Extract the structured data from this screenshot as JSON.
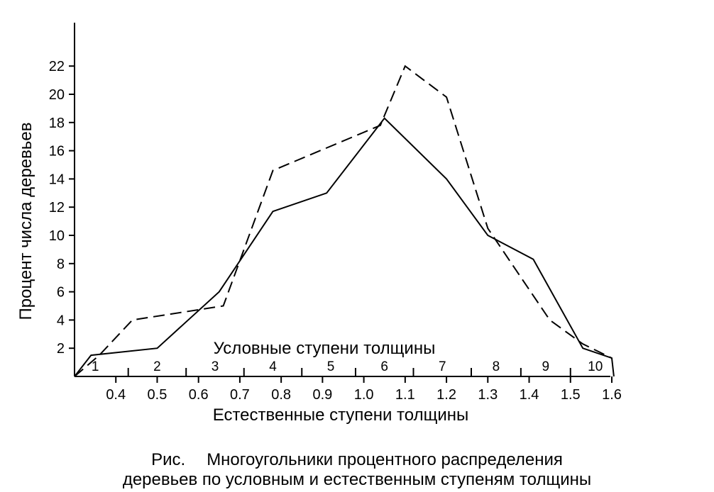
{
  "chart_data": {
    "type": "line",
    "ylabel": "Процент числа деревьев",
    "xlabel": "Естественные ступени толщины",
    "conditional_label": "Условные ступени толщины",
    "ylim": [
      0,
      24
    ],
    "yticks": [
      2,
      4,
      6,
      8,
      10,
      12,
      14,
      16,
      18,
      20,
      22
    ],
    "x_natural_ticks": [
      "0.4",
      "0.5",
      "0.6",
      "0.7",
      "0.8",
      "0.9",
      "1.0",
      "1.1",
      "1.2",
      "1.3",
      "1.4",
      "1.5",
      "1.6"
    ],
    "x_natural_values": [
      0.4,
      0.5,
      0.6,
      0.7,
      0.8,
      0.9,
      1.0,
      1.1,
      1.2,
      1.3,
      1.4,
      1.5,
      1.6
    ],
    "conditional_ticks": [
      {
        "label": "1",
        "x": 0.35
      },
      {
        "label": "2",
        "x": 0.5
      },
      {
        "label": "3",
        "x": 0.64
      },
      {
        "label": "4",
        "x": 0.78
      },
      {
        "label": "5",
        "x": 0.92
      },
      {
        "label": "6",
        "x": 1.05
      },
      {
        "label": "7",
        "x": 1.19
      },
      {
        "label": "8",
        "x": 1.32
      },
      {
        "label": "9",
        "x": 1.44
      },
      {
        "label": "10",
        "x": 1.56
      }
    ],
    "conditional_tick_marks": [
      0.43,
      0.57,
      0.71,
      0.85,
      0.98,
      1.12,
      1.26,
      1.38,
      1.5
    ],
    "grid": false,
    "series": [
      {
        "style": "solid",
        "points": [
          [
            0.3,
            0.0
          ],
          [
            0.34,
            1.5
          ],
          [
            0.5,
            2.0
          ],
          [
            0.65,
            6.0
          ],
          [
            0.78,
            11.7
          ],
          [
            0.91,
            13.0
          ],
          [
            1.05,
            18.3
          ],
          [
            1.2,
            14.0
          ],
          [
            1.3,
            10.0
          ],
          [
            1.41,
            8.3
          ],
          [
            1.53,
            2.0
          ],
          [
            1.6,
            1.3
          ],
          [
            1.605,
            0.0
          ]
        ]
      },
      {
        "style": "dashed",
        "points": [
          [
            0.3,
            0.0
          ],
          [
            0.36,
            1.5
          ],
          [
            0.44,
            4.0
          ],
          [
            0.66,
            5.0
          ],
          [
            0.78,
            14.6
          ],
          [
            1.04,
            17.8
          ],
          [
            1.1,
            22.0
          ],
          [
            1.2,
            19.8
          ],
          [
            1.3,
            10.5
          ],
          [
            1.45,
            4.0
          ],
          [
            1.53,
            2.3
          ],
          [
            1.6,
            1.3
          ]
        ]
      }
    ]
  },
  "caption": {
    "prefix": "Рис.",
    "line1": "Многоугольники процентного распределения",
    "line2": "деревьев по условным и естественным ступеням толщины"
  }
}
